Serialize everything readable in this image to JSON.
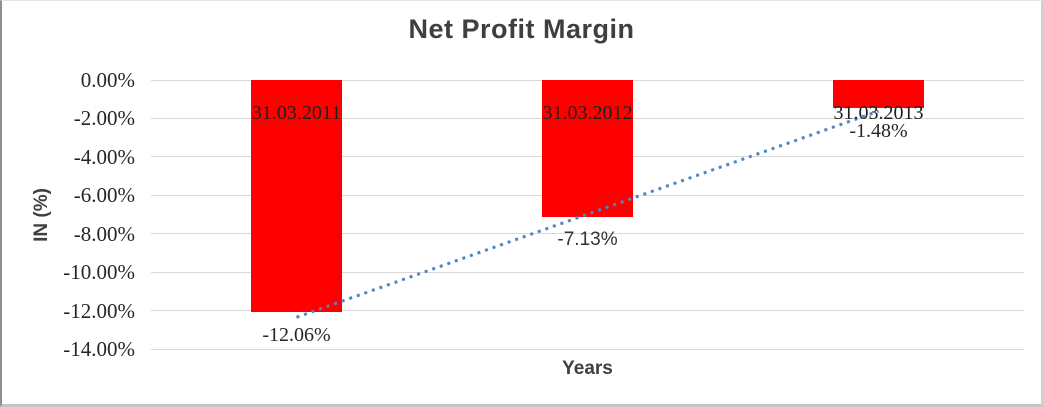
{
  "chart_data": {
    "type": "bar",
    "title": "Net Profit Margin",
    "xlabel": "Years",
    "ylabel": "IN (%)",
    "categories": [
      "31.03.2011",
      "31.03.2012",
      "31.03.2013"
    ],
    "values": [
      -12.06,
      -7.13,
      -1.48
    ],
    "value_labels": [
      "-12.06%",
      "-7.13%",
      "-1.48%"
    ],
    "yticks": [
      "0.00%",
      "-2.00%",
      "-4.00%",
      "-6.00%",
      "-8.00%",
      "-10.00%",
      "-12.00%",
      "-14.00%"
    ],
    "ylim": [
      -14,
      0
    ],
    "grid": true,
    "legend_position": "none",
    "bar_color": "#FF0000",
    "gridline_color": "#D9D9D9",
    "label_color": "#262626",
    "title_color": "#3F3F3F",
    "trendline": {
      "type": "linear",
      "style": "dotted",
      "color": "#4A86C8",
      "start_value": -12.35,
      "end_value": -1.62
    }
  }
}
